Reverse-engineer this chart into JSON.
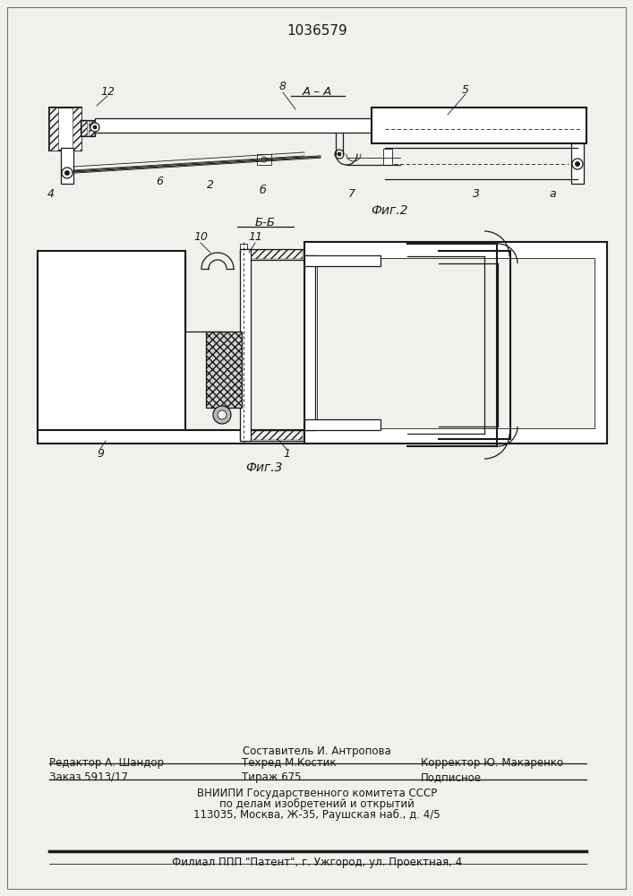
{
  "patent_number": "1036579",
  "bg_color": "#f2f0ed",
  "line_color": "#1a1a1a",
  "fig2_label": "А – А",
  "fig2_caption": "Фиг.2",
  "fig3_section": "Б-Б",
  "fig3_caption": "Фиг.3",
  "footer_line1_center": "Составитель И. Антропова",
  "footer_line2_left": "Редактор А. Шандор",
  "footer_line2_center": "Техред М.Костик",
  "footer_line2_right": "Корректор Ю. Макаренко",
  "footer_line3_left": "Заказ 5913/17",
  "footer_line3_center": "Тираж 675",
  "footer_line3_right": "Подписное",
  "footer_line4": "ВНИИПИ Государственного комитета СССР",
  "footer_line5": "по делам изобретений и открытий",
  "footer_line6": "113035, Москва, Ж-35, Раушская наб., д. 4/5",
  "footer_line7": "Филиал ППП \"Патент\", г. Ужгород, ул. Проектная, 4"
}
